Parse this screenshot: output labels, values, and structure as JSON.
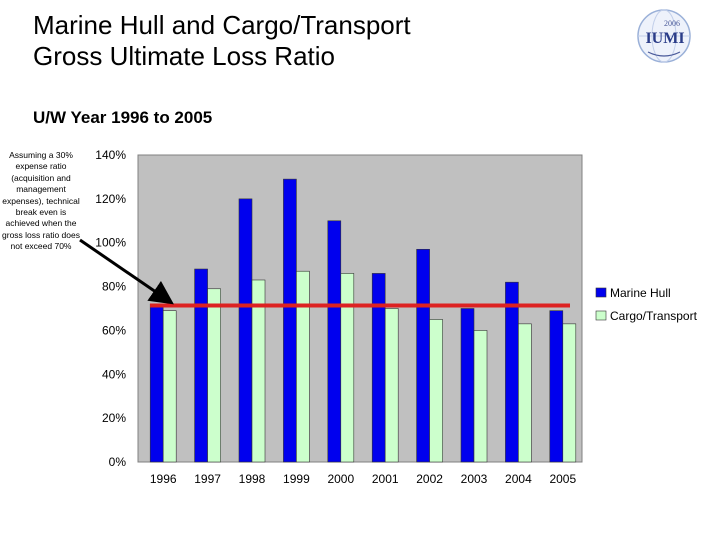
{
  "slide": {
    "title_line1": "Marine Hull and Cargo/Transport",
    "title_line2": "Gross Ultimate Loss Ratio",
    "subtitle": "U/W Year 1996 to 2005",
    "note": "Assuming a 30% expense ratio (acquisition and management expenses), technical break even is achieved when the gross loss ratio does not exceed 70%",
    "logo": {
      "year": "2006",
      "text": "IUMI",
      "icon": "iumi-globe-logo"
    }
  },
  "chart_data": {
    "type": "bar",
    "categories": [
      "1996",
      "1997",
      "1998",
      "1999",
      "2000",
      "2001",
      "2002",
      "2003",
      "2004",
      "2005"
    ],
    "series": [
      {
        "name": "Marine Hull",
        "color": "#0000ee",
        "values": [
          72,
          88,
          120,
          129,
          110,
          86,
          97,
          70,
          82,
          69
        ]
      },
      {
        "name": "Cargo/Transport",
        "color": "#ccffcc",
        "values": [
          69,
          79,
          83,
          87,
          86,
          70,
          65,
          60,
          63,
          63
        ]
      }
    ],
    "yticks": [
      "0%",
      "20%",
      "40%",
      "60%",
      "80%",
      "100%",
      "120%",
      "140%"
    ],
    "ylim": [
      0,
      140
    ],
    "reference_line": {
      "value": 70,
      "color": "#dd2222"
    },
    "plot_background": "#c0c0c0",
    "legend": "right",
    "grid": false
  }
}
